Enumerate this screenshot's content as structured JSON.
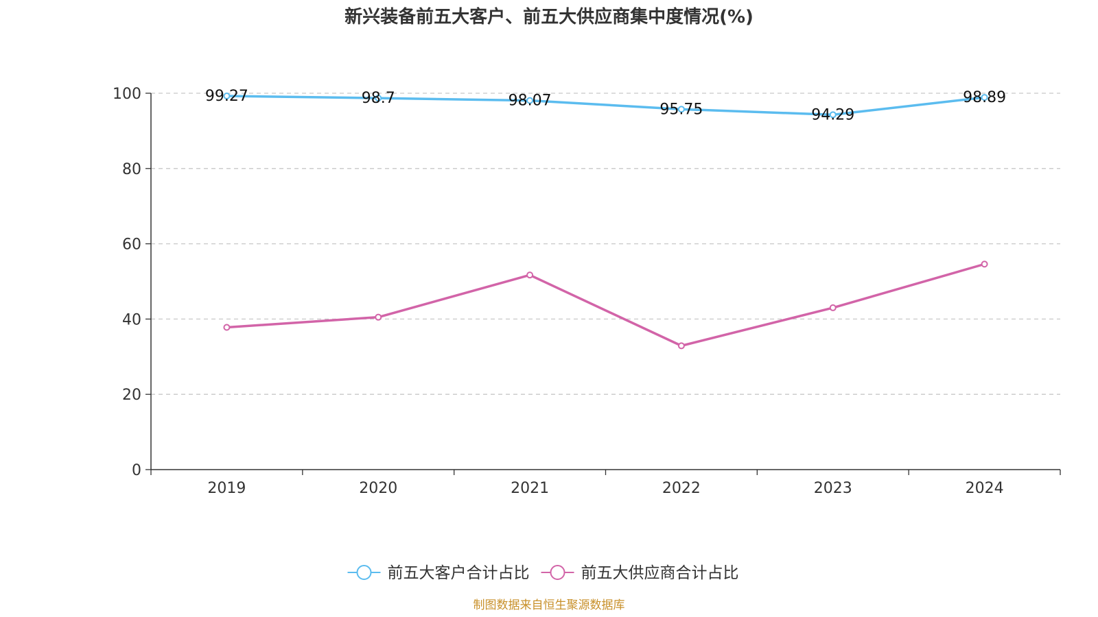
{
  "title": "新兴装备前五大客户、前五大供应商集中度情况(%)",
  "source": "制图数据来自恒生聚源数据库",
  "chart_data": {
    "type": "line",
    "categories": [
      "2019",
      "2020",
      "2021",
      "2022",
      "2023",
      "2024"
    ],
    "ylim": [
      0,
      100
    ],
    "yticks": [
      0,
      20,
      40,
      60,
      80,
      100
    ],
    "grid": "horizontal dashed",
    "legend_position": "bottom-center",
    "series": [
      {
        "name": "前五大客户合计占比",
        "color": "#5bbcef",
        "values": [
          99.27,
          98.7,
          98.07,
          95.75,
          94.29,
          98.89
        ],
        "labels": [
          "99.27",
          "98.7",
          "98.07",
          "95.75",
          "94.29",
          "98.89"
        ]
      },
      {
        "name": "前五大供应商合计占比",
        "color": "#d264a8",
        "values": [
          37.8,
          40.5,
          51.7,
          32.9,
          43.0,
          54.6
        ]
      }
    ]
  }
}
